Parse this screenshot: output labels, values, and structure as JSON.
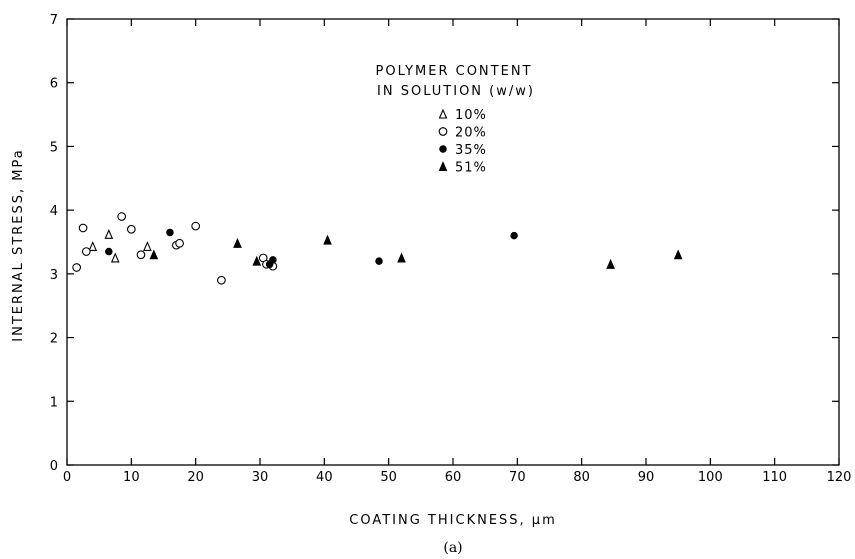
{
  "chart_data": {
    "type": "scatter",
    "xlabel": "COATING THICKNESS, μm",
    "ylabel": "INTERNAL STRESS, MPa",
    "xlim": [
      0,
      120
    ],
    "ylim": [
      0,
      7
    ],
    "x_ticks": [
      0,
      10,
      20,
      30,
      40,
      50,
      60,
      70,
      80,
      90,
      100,
      110,
      120
    ],
    "y_ticks": [
      0,
      1,
      2,
      3,
      4,
      5,
      6,
      7
    ],
    "grid": false,
    "legend": {
      "title_line1": "POLYMER CONTENT",
      "title_line2": "IN SOLUTION (w/w)",
      "placement": "top-center"
    },
    "series": [
      {
        "name": "10%",
        "marker": "open-triangle",
        "x": [
          4.0,
          6.5,
          7.5,
          12.5
        ],
        "y": [
          3.43,
          3.62,
          3.25,
          3.43
        ]
      },
      {
        "name": "20%",
        "marker": "open-circle",
        "x": [
          1.5,
          2.5,
          3.0,
          8.5,
          10.0,
          11.5,
          17.0,
          17.5,
          20.0,
          24.0,
          30.5,
          31.0,
          32.0
        ],
        "y": [
          3.1,
          3.72,
          3.35,
          3.9,
          3.7,
          3.3,
          3.45,
          3.48,
          3.75,
          2.9,
          3.25,
          3.15,
          3.12
        ]
      },
      {
        "name": "35%",
        "marker": "filled-circle",
        "x": [
          6.5,
          16.0,
          31.5,
          32.0,
          48.5,
          69.5
        ],
        "y": [
          3.35,
          3.65,
          3.15,
          3.22,
          3.2,
          3.6
        ]
      },
      {
        "name": "51%",
        "marker": "filled-triangle",
        "x": [
          13.5,
          26.5,
          29.5,
          40.5,
          52.0,
          84.5,
          95.0
        ],
        "y": [
          3.3,
          3.48,
          3.2,
          3.53,
          3.25,
          3.15,
          3.3
        ]
      }
    ],
    "caption": "(a)"
  }
}
